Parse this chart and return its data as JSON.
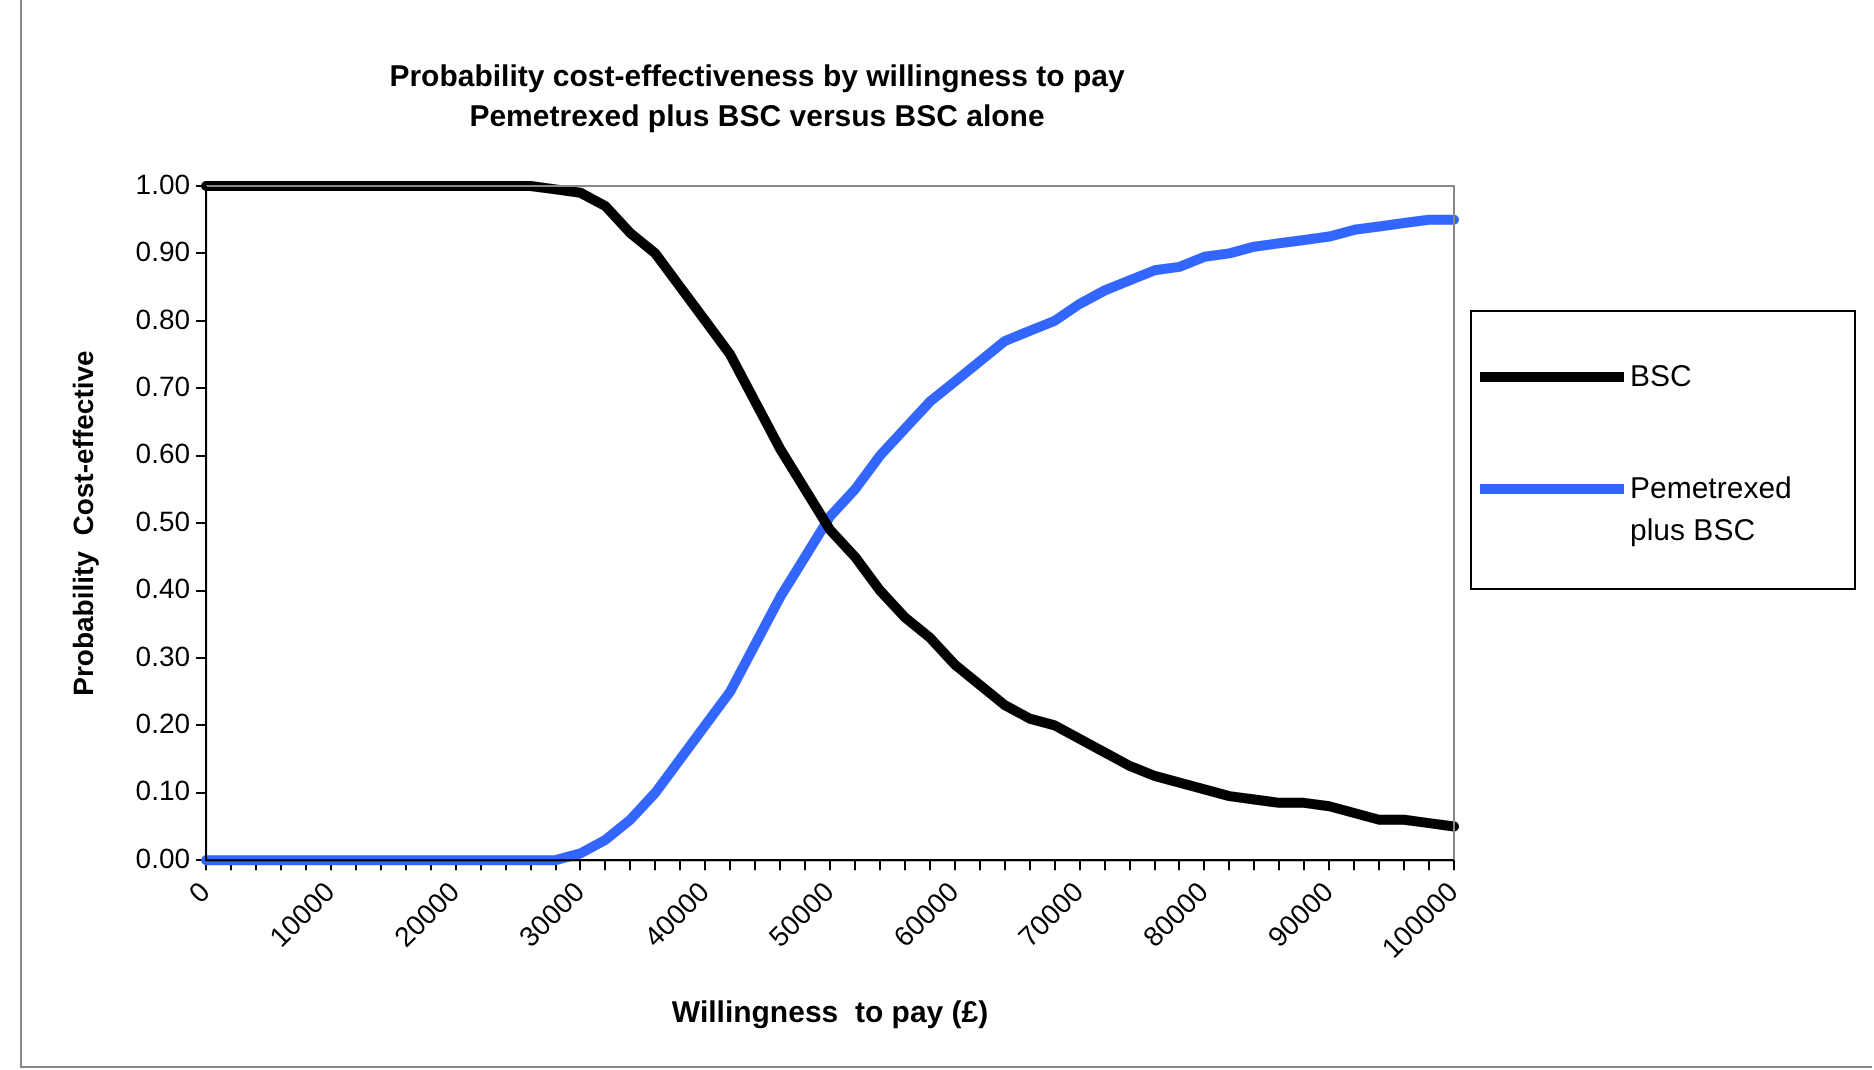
{
  "chart_data": {
    "type": "line",
    "title": "Probability cost-effectiveness by willingness to pay",
    "subtitle": "Pemetrexed plus BSC versus BSC alone",
    "xlabel": "Willingness  to pay (£)",
    "ylabel": "Probability  Cost-effective",
    "x": [
      0,
      2000,
      4000,
      6000,
      8000,
      10000,
      12000,
      14000,
      16000,
      18000,
      20000,
      22000,
      24000,
      26000,
      28000,
      30000,
      32000,
      34000,
      36000,
      38000,
      40000,
      42000,
      44000,
      46000,
      48000,
      50000,
      52000,
      54000,
      56000,
      58000,
      60000,
      62000,
      64000,
      66000,
      68000,
      70000,
      72000,
      74000,
      76000,
      78000,
      80000,
      82000,
      84000,
      86000,
      88000,
      90000,
      92000,
      94000,
      96000,
      98000,
      100000
    ],
    "series": [
      {
        "name": "BSC",
        "color": "#000000",
        "values": [
          1,
          1,
          1,
          1,
          1,
          1,
          1,
          1,
          1,
          1,
          1,
          1,
          1,
          1,
          0.995,
          0.99,
          0.97,
          0.93,
          0.9,
          0.85,
          0.8,
          0.75,
          0.68,
          0.61,
          0.55,
          0.49,
          0.45,
          0.4,
          0.36,
          0.33,
          0.29,
          0.26,
          0.23,
          0.21,
          0.2,
          0.18,
          0.16,
          0.14,
          0.125,
          0.115,
          0.105,
          0.095,
          0.09,
          0.085,
          0.085,
          0.08,
          0.07,
          0.06,
          0.06,
          0.055,
          0.05
        ]
      },
      {
        "name": "Pemetrexed plus BSC",
        "color": "#3366ff",
        "values": [
          0,
          0,
          0,
          0,
          0,
          0,
          0,
          0,
          0,
          0,
          0,
          0,
          0,
          0,
          0,
          0.01,
          0.03,
          0.06,
          0.1,
          0.15,
          0.2,
          0.25,
          0.32,
          0.39,
          0.45,
          0.51,
          0.55,
          0.6,
          0.64,
          0.68,
          0.71,
          0.74,
          0.77,
          0.785,
          0.8,
          0.825,
          0.845,
          0.86,
          0.875,
          0.88,
          0.895,
          0.9,
          0.91,
          0.915,
          0.92,
          0.925,
          0.935,
          0.94,
          0.945,
          0.95,
          0.95
        ]
      }
    ],
    "xlim": [
      0,
      100000
    ],
    "xticks": [
      0,
      {
        "value": 2000,
        "label": null
      },
      {
        "value": 4000,
        "label": null
      },
      {
        "value": 6000,
        "label": null
      },
      {
        "value": 8000,
        "label": null
      },
      10000,
      {
        "value": 12000,
        "label": null
      },
      {
        "value": 14000,
        "label": null
      },
      {
        "value": 16000,
        "label": null
      },
      {
        "value": 18000,
        "label": null
      },
      20000,
      {
        "value": 22000,
        "label": null
      },
      {
        "value": 24000,
        "label": null
      },
      {
        "value": 26000,
        "label": null
      },
      {
        "value": 28000,
        "label": null
      },
      30000,
      {
        "value": 32000,
        "label": null
      },
      {
        "value": 34000,
        "label": null
      },
      {
        "value": 36000,
        "label": null
      },
      {
        "value": 38000,
        "label": null
      },
      40000,
      {
        "value": 42000,
        "label": null
      },
      {
        "value": 44000,
        "label": null
      },
      {
        "value": 46000,
        "label": null
      },
      {
        "value": 48000,
        "label": null
      },
      50000,
      {
        "value": 52000,
        "label": null
      },
      {
        "value": 54000,
        "label": null
      },
      {
        "value": 56000,
        "label": null
      },
      {
        "value": 58000,
        "label": null
      },
      60000,
      {
        "value": 62000,
        "label": null
      },
      {
        "value": 64000,
        "label": null
      },
      {
        "value": 66000,
        "label": null
      },
      {
        "value": 68000,
        "label": null
      },
      70000,
      {
        "value": 72000,
        "label": null
      },
      {
        "value": 74000,
        "label": null
      },
      {
        "value": 76000,
        "label": null
      },
      {
        "value": 78000,
        "label": null
      },
      80000,
      {
        "value": 82000,
        "label": null
      },
      {
        "value": 84000,
        "label": null
      },
      {
        "value": 86000,
        "label": null
      },
      {
        "value": 88000,
        "label": null
      },
      90000,
      {
        "value": 92000,
        "label": null
      },
      {
        "value": 94000,
        "label": null
      },
      {
        "value": 96000,
        "label": null
      },
      {
        "value": 98000,
        "label": null
      },
      100000
    ],
    "ylim": [
      0,
      1
    ],
    "yticks": [
      {
        "value": 0,
        "label": "0.00"
      },
      {
        "value": 0.1,
        "label": "0.10"
      },
      {
        "value": 0.2,
        "label": "0.20"
      },
      {
        "value": 0.3,
        "label": "0.30"
      },
      {
        "value": 0.4,
        "label": "0.40"
      },
      {
        "value": 0.5,
        "label": "0.50"
      },
      {
        "value": 0.6,
        "label": "0.60"
      },
      {
        "value": 0.7,
        "label": "0.70"
      },
      {
        "value": 0.8,
        "label": "0.80"
      },
      {
        "value": 0.9,
        "label": "0.90"
      },
      {
        "value": 1,
        "label": "1.00"
      }
    ],
    "grid": false,
    "legend": "right",
    "marker": "none",
    "line_style": "solid"
  }
}
